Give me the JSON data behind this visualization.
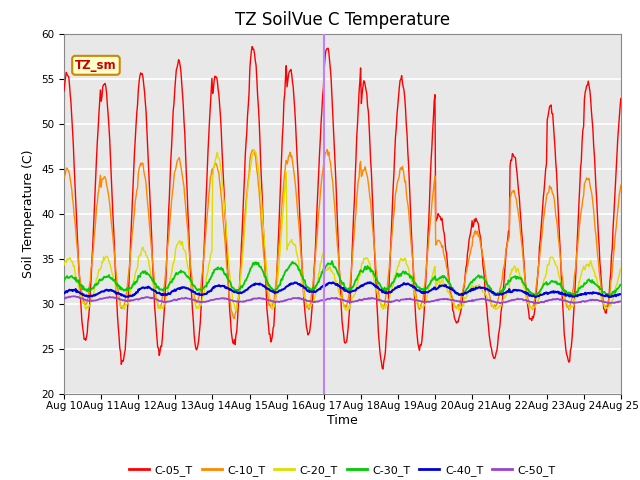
{
  "title": "TZ SoilVue C Temperature",
  "xlabel": "Time",
  "ylabel": "Soil Temperature (C)",
  "ylim": [
    20,
    60
  ],
  "xlim": [
    0,
    15
  ],
  "x_tick_labels": [
    "Aug 10",
    "Aug 11",
    "Aug 12",
    "Aug 13",
    "Aug 14",
    "Aug 15",
    "Aug 16",
    "Aug 17",
    "Aug 18",
    "Aug 19",
    "Aug 20",
    "Aug 21",
    "Aug 22",
    "Aug 23",
    "Aug 24",
    "Aug 25"
  ],
  "annotation_label": "TZ_sm",
  "vline_x": 7.0,
  "vline_color": "#bf7fff",
  "series_colors": {
    "C-05_T": "#ff0000",
    "C-10_T": "#ff8800",
    "C-20_T": "#dddd00",
    "C-30_T": "#00cc00",
    "C-40_T": "#0000dd",
    "C-50_T": "#9944cc"
  },
  "background_color": "#e8e8e8",
  "grid_color": "#ffffff",
  "title_fontsize": 12,
  "axis_label_fontsize": 9,
  "tick_fontsize": 7.5
}
